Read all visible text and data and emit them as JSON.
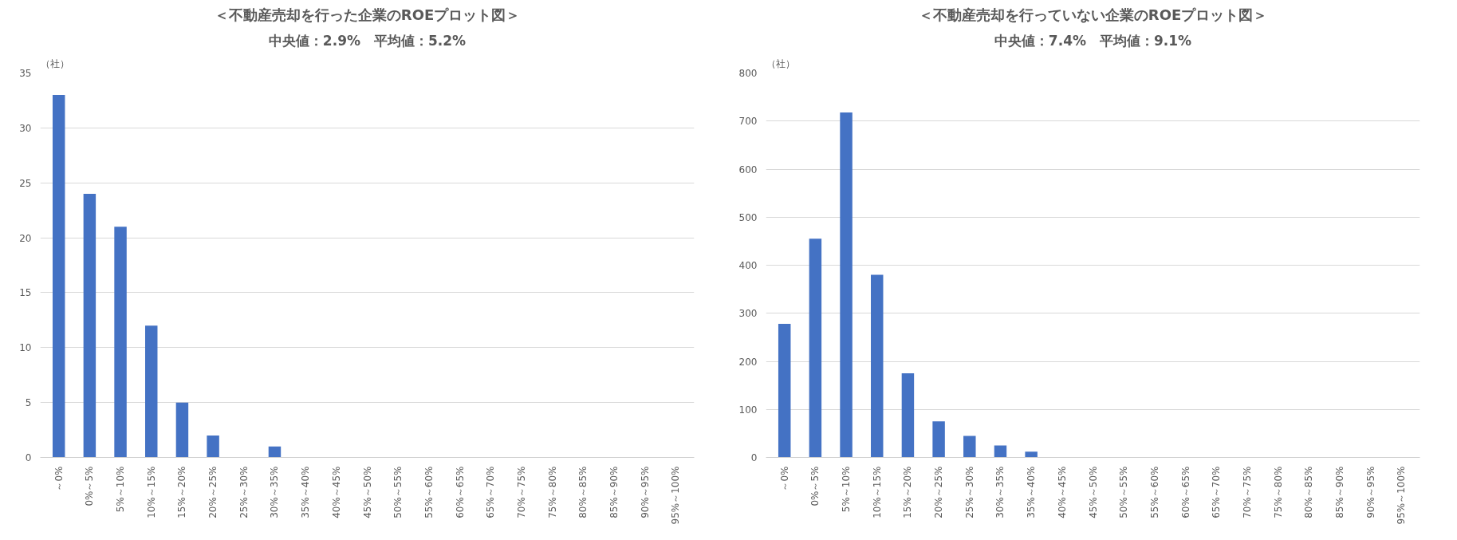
{
  "chart_data": [
    {
      "type": "bar",
      "title": "＜不動産売却を行った企業のROEプロット図＞",
      "subtitle": "中央値：2.9%　平均値：5.2%",
      "ylabel": "（社）",
      "categories": [
        "～0%",
        "0%～5%",
        "5%～10%",
        "10%～15%",
        "15%～20%",
        "20%～25%",
        "25%～30%",
        "30%～35%",
        "35%～40%",
        "40%～45%",
        "45%～50%",
        "50%～55%",
        "55%～60%",
        "60%～65%",
        "65%～70%",
        "70%～75%",
        "75%～80%",
        "80%～85%",
        "85%～90%",
        "90%～95%",
        "95%～100%"
      ],
      "values": [
        33,
        24,
        21,
        12,
        5,
        2,
        0,
        1,
        0,
        0,
        0,
        0,
        0,
        0,
        0,
        0,
        0,
        0,
        0,
        0,
        0
      ],
      "color": "#4472c4",
      "ylim": [
        0,
        35
      ],
      "yticks": [
        0,
        5,
        10,
        15,
        20,
        25,
        30,
        35
      ],
      "grid": "y"
    },
    {
      "type": "bar",
      "title": "＜不動産売却を行っていない企業のROEプロット図＞",
      "subtitle": "中央値：7.4%　平均値：9.1%",
      "ylabel": "（社）",
      "categories": [
        "～0%",
        "0%～5%",
        "5%～10%",
        "10%～15%",
        "15%～20%",
        "20%～25%",
        "25%～30%",
        "30%～35%",
        "35%～40%",
        "40%～45%",
        "45%～50%",
        "50%～55%",
        "55%～60%",
        "60%～65%",
        "65%～70%",
        "70%～75%",
        "75%～80%",
        "80%～85%",
        "85%～90%",
        "90%～95%",
        "95%～100%"
      ],
      "values": [
        278,
        455,
        718,
        380,
        175,
        75,
        45,
        25,
        12,
        0,
        0,
        0,
        0,
        0,
        0,
        0,
        0,
        0,
        0,
        0,
        0
      ],
      "color": "#4472c4",
      "ylim": [
        0,
        800
      ],
      "yticks": [
        0,
        100,
        200,
        300,
        400,
        500,
        600,
        700,
        800
      ],
      "grid": "y"
    }
  ]
}
